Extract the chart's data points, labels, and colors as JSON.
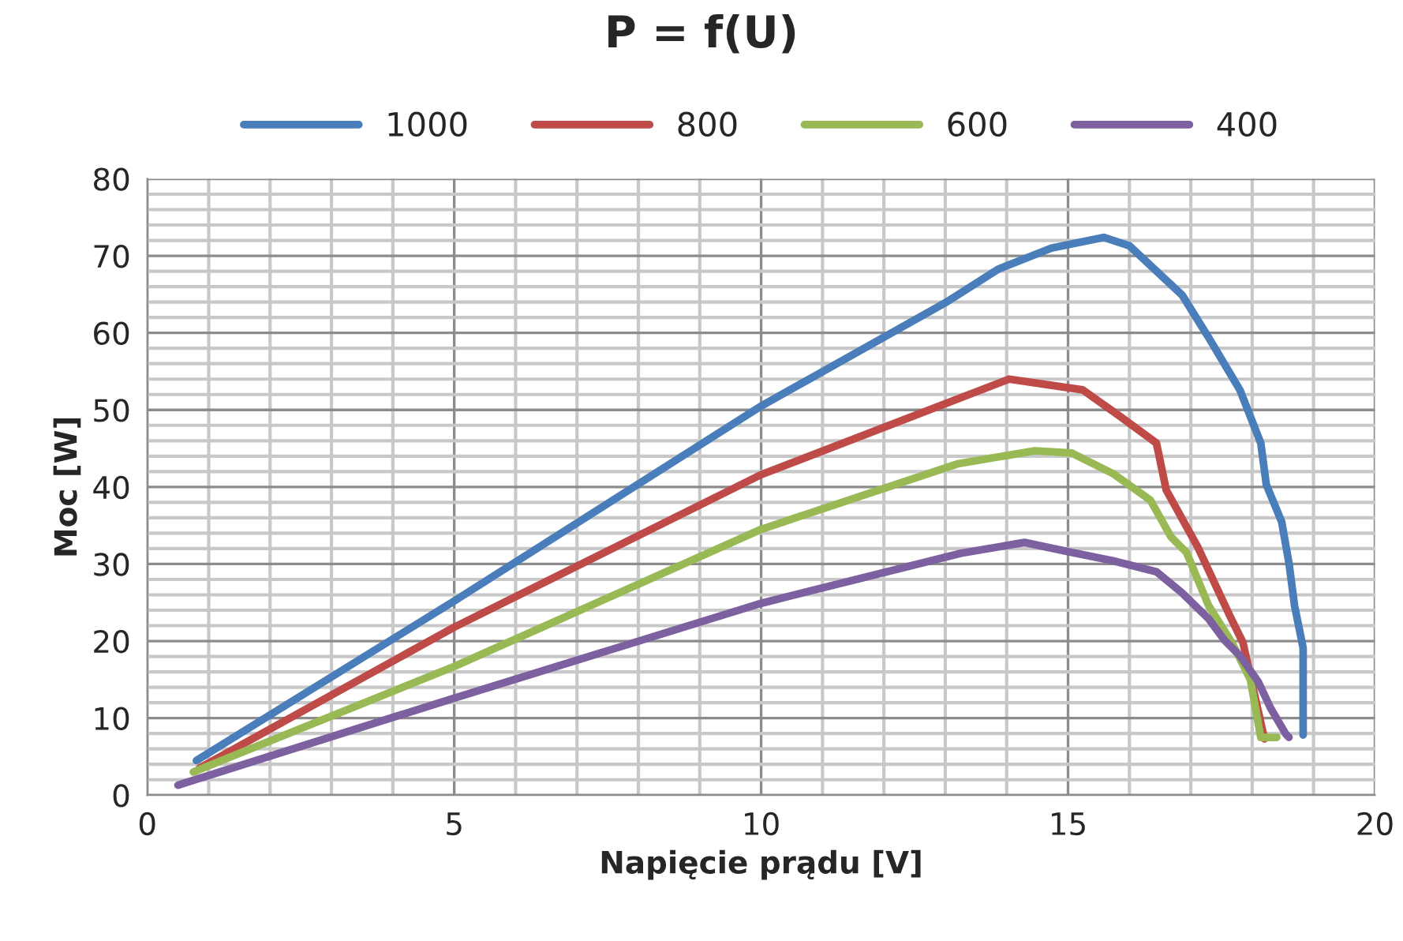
{
  "chart_data": {
    "type": "line",
    "title": "P = f(U)",
    "xlabel": "Napięcie prądu [V]",
    "ylabel": "Moc [W]",
    "xlim": [
      0,
      20
    ],
    "xticks": [
      0,
      5,
      10,
      15,
      20
    ],
    "ylim": [
      0,
      80
    ],
    "yticks": [
      0,
      10,
      20,
      30,
      40,
      50,
      60,
      70,
      80
    ],
    "grid": true,
    "legend": "top",
    "marker": "none",
    "line_style": "solid",
    "series": [
      {
        "name": "1000",
        "color": "#4a7ebb",
        "x": [
          0.8,
          5,
          10,
          13.0,
          13.87,
          14.73,
          15.58,
          16.0,
          16.86,
          17.29,
          17.8,
          18.14,
          18.23,
          18.48,
          18.6,
          18.69,
          18.83,
          18.83
        ],
        "values": [
          4.5,
          25.2,
          50.5,
          63.9,
          68.3,
          71.0,
          72.4,
          71.3,
          64.9,
          59.4,
          52.6,
          45.7,
          40.3,
          35.5,
          30.1,
          24.6,
          19.1,
          7.8
        ]
      },
      {
        "name": "800",
        "color": "#be4b48",
        "x": [
          0.85,
          5,
          10,
          14.04,
          15.24,
          15.84,
          16.44,
          16.6,
          17.12,
          17.64,
          17.85,
          18.06,
          18.2
        ],
        "values": [
          3.5,
          21.8,
          41.6,
          54.0,
          52.6,
          49.2,
          45.7,
          39.6,
          32.1,
          23.2,
          19.8,
          12.3,
          7.3
        ]
      },
      {
        "name": "600",
        "color": "#98b954",
        "x": [
          0.75,
          5,
          10,
          13.2,
          14.46,
          15.06,
          15.74,
          16.34,
          16.68,
          16.93,
          17.29,
          17.67,
          17.97,
          18.14,
          18.4
        ],
        "values": [
          3.0,
          16.7,
          34.5,
          43.0,
          44.7,
          44.4,
          41.7,
          38.3,
          33.5,
          31.5,
          24.6,
          19.8,
          15.0,
          7.5,
          7.5
        ]
      },
      {
        "name": "400",
        "color": "#7d60a0",
        "x": [
          0.5,
          5,
          10,
          13.26,
          14.29,
          15.06,
          15.74,
          16.44,
          16.85,
          17.29,
          17.55,
          17.8,
          18.1,
          18.3,
          18.55,
          18.6
        ],
        "values": [
          1.3,
          12.6,
          24.9,
          31.4,
          32.8,
          31.5,
          30.4,
          29.0,
          26.3,
          22.9,
          20.1,
          18.1,
          14.7,
          11.3,
          7.9,
          7.5
        ]
      }
    ]
  }
}
